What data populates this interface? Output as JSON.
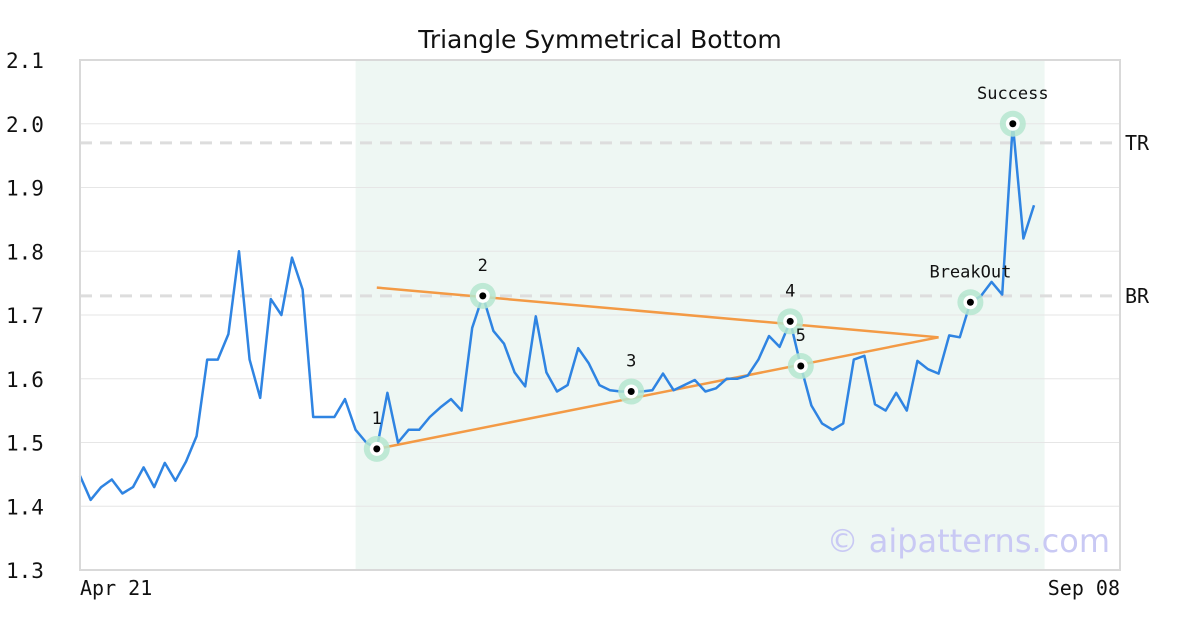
{
  "chart_data": {
    "type": "line",
    "title": "Triangle Symmetrical Bottom",
    "xlabel": "",
    "ylabel": "",
    "ylim": [
      1.3,
      2.1
    ],
    "y_ticks": [
      "1.3",
      "1.4",
      "1.5",
      "1.6",
      "1.7",
      "1.8",
      "1.9",
      "2.0",
      "2.1"
    ],
    "x_tick_labels": [
      "Apr 21",
      "Sep 08"
    ],
    "grid": "horizontal",
    "series": [
      {
        "color": "#2f84e2",
        "values": [
          1.448,
          1.41,
          1.43,
          1.442,
          1.42,
          1.43,
          1.461,
          1.43,
          1.468,
          1.44,
          1.47,
          1.51,
          1.63,
          1.63,
          1.67,
          1.8,
          1.63,
          1.57,
          1.725,
          1.7,
          1.79,
          1.74,
          1.54,
          1.54,
          1.54,
          1.568,
          1.52,
          1.5,
          1.49,
          1.578,
          1.5,
          1.52,
          1.52,
          1.54,
          1.555,
          1.568,
          1.55,
          1.68,
          1.73,
          1.675,
          1.655,
          1.61,
          1.588,
          1.698,
          1.61,
          1.58,
          1.59,
          1.648,
          1.624,
          1.59,
          1.582,
          1.58,
          1.58,
          1.58,
          1.582,
          1.608,
          1.582,
          1.59,
          1.598,
          1.58,
          1.585,
          1.6,
          1.6,
          1.605,
          1.63,
          1.667,
          1.65,
          1.69,
          1.62,
          1.558,
          1.53,
          1.52,
          1.53,
          1.63,
          1.636,
          1.56,
          1.55,
          1.578,
          1.55,
          1.628,
          1.615,
          1.608,
          1.668,
          1.665,
          1.72,
          1.73,
          1.752,
          1.732,
          2.0,
          1.82,
          1.872
        ]
      }
    ],
    "shaded_region": {
      "from_index": 26,
      "to_index": 91,
      "color": "#eef7f3"
    },
    "reference_lines": [
      {
        "label": "TR",
        "y": 1.97,
        "color": "#dddddd"
      },
      {
        "label": "BR",
        "y": 1.73,
        "color": "#dddddd"
      }
    ],
    "trend_lines": [
      {
        "color": "#f39a45",
        "from": {
          "index": 28,
          "y": 1.743
        },
        "to": {
          "index": 81,
          "y": 1.665
        }
      },
      {
        "color": "#f39a45",
        "from": {
          "index": 28,
          "y": 1.49
        },
        "to": {
          "index": 81,
          "y": 1.665
        }
      }
    ],
    "annotations": [
      {
        "label": "1",
        "index": 28,
        "y": 1.49,
        "label_pos": "above"
      },
      {
        "label": "2",
        "index": 38,
        "y": 1.73,
        "label_pos": "above"
      },
      {
        "label": "3",
        "index": 52,
        "y": 1.58,
        "label_pos": "above"
      },
      {
        "label": "4",
        "index": 67,
        "y": 1.69,
        "label_pos": "above"
      },
      {
        "label": "5",
        "index": 68,
        "y": 1.62,
        "label_pos": "above"
      },
      {
        "label": "BreakOut",
        "index": 84,
        "y": 1.72,
        "label_pos": "above"
      },
      {
        "label": "Success",
        "index": 88,
        "y": 2.0,
        "label_pos": "above"
      }
    ],
    "marker_style": {
      "ring_color": "#b5e6cf",
      "dot_color": "#000000"
    }
  },
  "watermark": "© aipatterns.com"
}
